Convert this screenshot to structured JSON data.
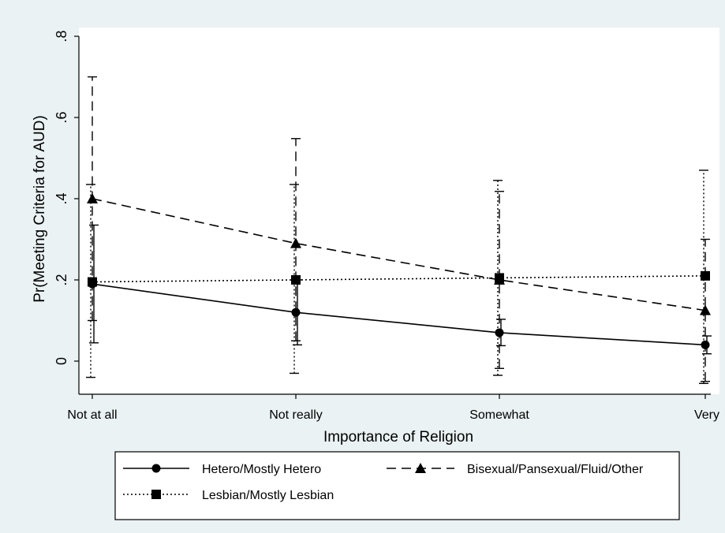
{
  "chart_data": {
    "type": "line",
    "title": "",
    "xlabel": "Importance of Religion",
    "ylabel": "Pr(Meeting Criteria for AUD)",
    "categories": [
      "Not at all",
      "Not really",
      "Somewhat",
      "Very"
    ],
    "ylim": [
      -0.08,
      0.82
    ],
    "yticks": [
      0,
      0.2,
      0.4,
      0.6,
      0.8
    ],
    "ytick_labels": [
      "0",
      ".2",
      ".4",
      ".6",
      ".8"
    ],
    "grid": false,
    "legend_position": "bottom",
    "series": [
      {
        "name": "Hetero/Mostly Hetero",
        "line_style": "solid",
        "marker": "circle",
        "color": "#000000",
        "values": [
          0.19,
          0.12,
          0.07,
          0.04
        ],
        "ci_low": [
          0.045,
          0.04,
          0.038,
          0.018
        ],
        "ci_high": [
          0.335,
          0.2,
          0.103,
          0.062
        ]
      },
      {
        "name": "Bisexual/Pansexual/Fluid/Other",
        "line_style": "dashed",
        "marker": "triangle",
        "color": "#000000",
        "values": [
          0.4,
          0.29,
          0.2,
          0.125
        ],
        "ci_low": [
          0.1,
          0.05,
          -0.018,
          -0.05
        ],
        "ci_high": [
          0.7,
          0.548,
          0.418,
          0.3
        ]
      },
      {
        "name": "Lesbian/Mostly Lesbian",
        "line_style": "dotted",
        "marker": "square",
        "color": "#000000",
        "values": [
          0.195,
          0.2,
          0.205,
          0.21
        ],
        "ci_low": [
          -0.04,
          -0.03,
          -0.035,
          -0.055
        ],
        "ci_high": [
          0.435,
          0.435,
          0.445,
          0.47
        ]
      }
    ]
  }
}
